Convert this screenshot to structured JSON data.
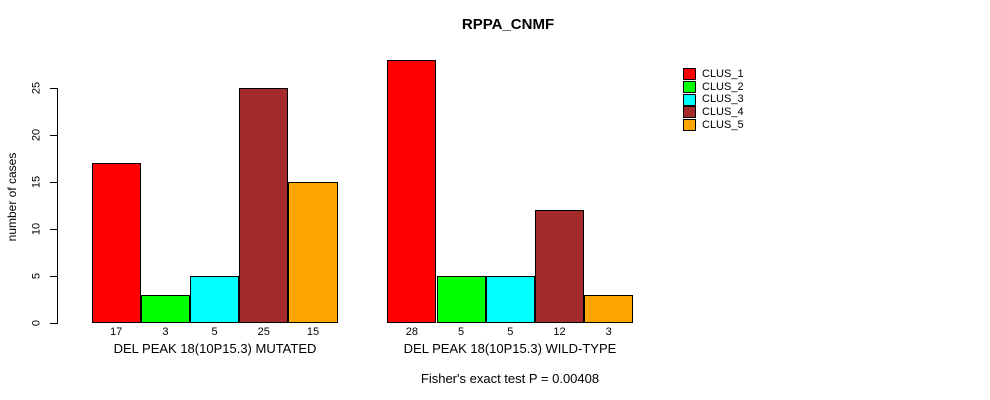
{
  "chart_data": {
    "type": "bar",
    "title": "RPPA_CNMF",
    "ylabel": "number of cases",
    "ylim": [
      0,
      28
    ],
    "yticks": [
      0,
      5,
      10,
      15,
      20,
      25
    ],
    "grid": false,
    "legend_position": "right",
    "categories": [
      "DEL PEAK 18(10P15.3) MUTATED",
      "DEL PEAK 18(10P15.3) WILD-TYPE"
    ],
    "series": [
      {
        "name": "CLUS_1",
        "color": "#FF0000",
        "values": [
          17,
          28
        ]
      },
      {
        "name": "CLUS_2",
        "color": "#00FF00",
        "values": [
          3,
          5
        ]
      },
      {
        "name": "CLUS_3",
        "color": "#00FFFF",
        "values": [
          5,
          5
        ]
      },
      {
        "name": "CLUS_4",
        "color": "#A52A2A",
        "values": [
          25,
          12
        ]
      },
      {
        "name": "CLUS_5",
        "color": "#FFA500",
        "values": [
          15,
          3
        ]
      }
    ],
    "bar_value_labels": {
      "group_1": [
        "17",
        "3",
        "5",
        "25",
        "15"
      ],
      "group_2": [
        "28",
        "5",
        "5",
        "12",
        "3"
      ]
    },
    "annotation": "Fisher's exact test P = 0.00408"
  }
}
